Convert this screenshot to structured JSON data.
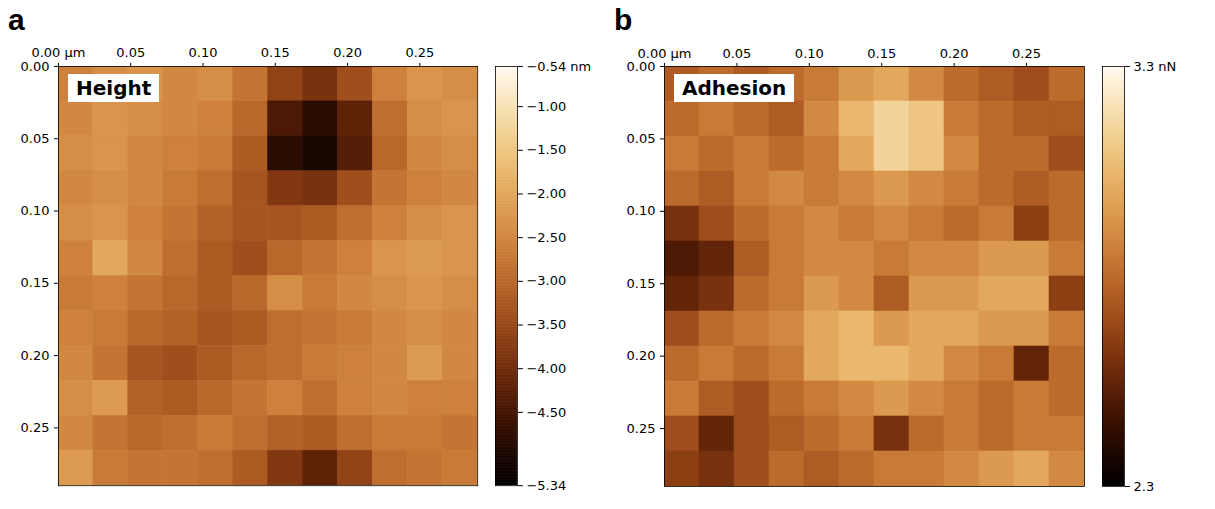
{
  "chart_data": [
    {
      "type": "heatmap",
      "panel_label": "a",
      "title": "Height",
      "xlim": [
        0,
        0.29
      ],
      "ylim": [
        0,
        0.29
      ],
      "xticks": [
        {
          "value": 0,
          "label": "0.00 µm"
        },
        0.05,
        {
          "value": 0.1,
          "label": "0.10"
        },
        0.15,
        {
          "value": 0.2,
          "label": "0.20"
        },
        0.25
      ],
      "yticks": [
        {
          "value": 0,
          "label": "0.00"
        },
        0.05,
        {
          "value": 0.1,
          "label": "0.10"
        },
        0.15,
        {
          "value": 0.2,
          "label": "0.20"
        },
        0.25
      ],
      "cells": [
        [
          -2.6,
          -2.4,
          -2.3,
          -2.5,
          -2.4,
          -2.8,
          -3.6,
          -3.9,
          -3.4,
          -2.6,
          -2.3,
          -2.4
        ],
        [
          -2.5,
          -2.3,
          -2.4,
          -2.5,
          -2.6,
          -3.0,
          -4.4,
          -4.8,
          -4.2,
          -2.9,
          -2.4,
          -2.3
        ],
        [
          -2.4,
          -2.3,
          -2.5,
          -2.6,
          -2.7,
          -3.2,
          -4.8,
          -5.0,
          -4.3,
          -3.0,
          -2.5,
          -2.4
        ],
        [
          -2.5,
          -2.4,
          -2.5,
          -2.7,
          -2.9,
          -3.3,
          -3.8,
          -3.9,
          -3.4,
          -2.8,
          -2.6,
          -2.5
        ],
        [
          -2.4,
          -2.3,
          -2.6,
          -2.8,
          -3.1,
          -3.3,
          -3.3,
          -3.2,
          -2.9,
          -2.6,
          -2.4,
          -2.3
        ],
        [
          -2.6,
          -2.0,
          -2.5,
          -2.9,
          -3.2,
          -3.4,
          -3.0,
          -2.8,
          -2.6,
          -2.3,
          -2.2,
          -2.3
        ],
        [
          -2.7,
          -2.6,
          -2.8,
          -3.0,
          -3.2,
          -3.0,
          -2.4,
          -2.7,
          -2.5,
          -2.4,
          -2.3,
          -2.4
        ],
        [
          -2.6,
          -2.7,
          -3.0,
          -3.1,
          -3.3,
          -3.2,
          -2.9,
          -2.8,
          -2.7,
          -2.5,
          -2.4,
          -2.5
        ],
        [
          -2.5,
          -2.8,
          -3.3,
          -3.4,
          -3.2,
          -3.0,
          -2.9,
          -2.7,
          -2.6,
          -2.5,
          -2.2,
          -2.5
        ],
        [
          -2.4,
          -2.2,
          -3.1,
          -3.2,
          -3.0,
          -2.8,
          -2.6,
          -2.9,
          -2.6,
          -2.5,
          -2.6,
          -2.6
        ],
        [
          -2.5,
          -2.8,
          -3.0,
          -2.9,
          -2.7,
          -2.9,
          -3.1,
          -3.2,
          -2.9,
          -2.7,
          -2.7,
          -2.8
        ],
        [
          -2.2,
          -2.7,
          -2.8,
          -2.8,
          -2.9,
          -3.2,
          -3.8,
          -4.2,
          -3.6,
          -2.9,
          -2.8,
          -2.7
        ]
      ],
      "colorbar_range": [
        -5.34,
        -0.54
      ],
      "colorbar_ticks": [
        {
          "value": -0.54,
          "label": "−0.54 nm"
        },
        {
          "value": -1,
          "label": "−1.00"
        },
        {
          "value": -1.5,
          "label": "−1.50"
        },
        {
          "value": -2,
          "label": "−2.00"
        },
        {
          "value": -2.5,
          "label": "−2.50"
        },
        {
          "value": -3,
          "label": "−3.00"
        },
        {
          "value": -3.5,
          "label": "−3.50"
        },
        {
          "value": -4,
          "label": "−4.00"
        },
        {
          "value": -4.5,
          "label": "−4.50"
        },
        {
          "value": -5.34,
          "label": "−5.34"
        }
      ]
    },
    {
      "type": "heatmap",
      "panel_label": "b",
      "title": "Adhesion",
      "xlim": [
        0,
        0.29
      ],
      "ylim": [
        0,
        0.29
      ],
      "xticks": [
        {
          "value": 0,
          "label": "0.00 µm"
        },
        0.05,
        {
          "value": 0.1,
          "label": "0.10"
        },
        0.15,
        {
          "value": 0.2,
          "label": "0.20"
        },
        0.25
      ],
      "yticks": [
        {
          "value": 0,
          "label": "0.00"
        },
        0.05,
        {
          "value": 0.1,
          "label": "0.10"
        },
        0.15,
        {
          "value": 0.2,
          "label": "0.20"
        },
        0.25
      ],
      "cells": [
        [
          2.75,
          2.8,
          2.75,
          2.8,
          2.85,
          2.95,
          3.0,
          2.9,
          2.8,
          2.75,
          2.7,
          2.8
        ],
        [
          2.8,
          2.85,
          2.8,
          2.75,
          2.9,
          3.05,
          3.15,
          3.1,
          2.85,
          2.8,
          2.75,
          2.75
        ],
        [
          2.85,
          2.8,
          2.85,
          2.8,
          2.85,
          3.0,
          3.15,
          3.1,
          2.9,
          2.8,
          2.8,
          2.7
        ],
        [
          2.8,
          2.75,
          2.85,
          2.9,
          2.85,
          2.9,
          2.95,
          2.9,
          2.85,
          2.8,
          2.75,
          2.8
        ],
        [
          2.6,
          2.7,
          2.8,
          2.85,
          2.9,
          2.85,
          2.9,
          2.85,
          2.8,
          2.85,
          2.65,
          2.8
        ],
        [
          2.5,
          2.55,
          2.75,
          2.85,
          2.9,
          2.9,
          2.85,
          2.9,
          2.9,
          2.95,
          2.95,
          2.85
        ],
        [
          2.55,
          2.6,
          2.8,
          2.85,
          2.95,
          2.9,
          2.75,
          2.95,
          2.95,
          3.0,
          3.0,
          2.65
        ],
        [
          2.7,
          2.8,
          2.85,
          2.9,
          3.0,
          3.05,
          2.95,
          3.0,
          3.0,
          2.95,
          2.95,
          2.85
        ],
        [
          2.8,
          2.85,
          2.8,
          2.85,
          3.0,
          3.05,
          3.05,
          3.0,
          2.9,
          2.85,
          2.55,
          2.8
        ],
        [
          2.85,
          2.75,
          2.7,
          2.8,
          2.85,
          2.9,
          2.95,
          2.9,
          2.85,
          2.8,
          2.85,
          2.8
        ],
        [
          2.7,
          2.55,
          2.7,
          2.75,
          2.8,
          2.85,
          2.6,
          2.8,
          2.85,
          2.8,
          2.85,
          2.85
        ],
        [
          2.65,
          2.6,
          2.7,
          2.8,
          2.75,
          2.8,
          2.85,
          2.85,
          2.9,
          2.95,
          3.0,
          2.9
        ]
      ],
      "colorbar_range": [
        2.3,
        3.3
      ],
      "colorbar_ticks": [
        {
          "value": 3.3,
          "label": "3.3 nN"
        },
        {
          "value": 2.3,
          "label": "2.3"
        }
      ]
    }
  ]
}
